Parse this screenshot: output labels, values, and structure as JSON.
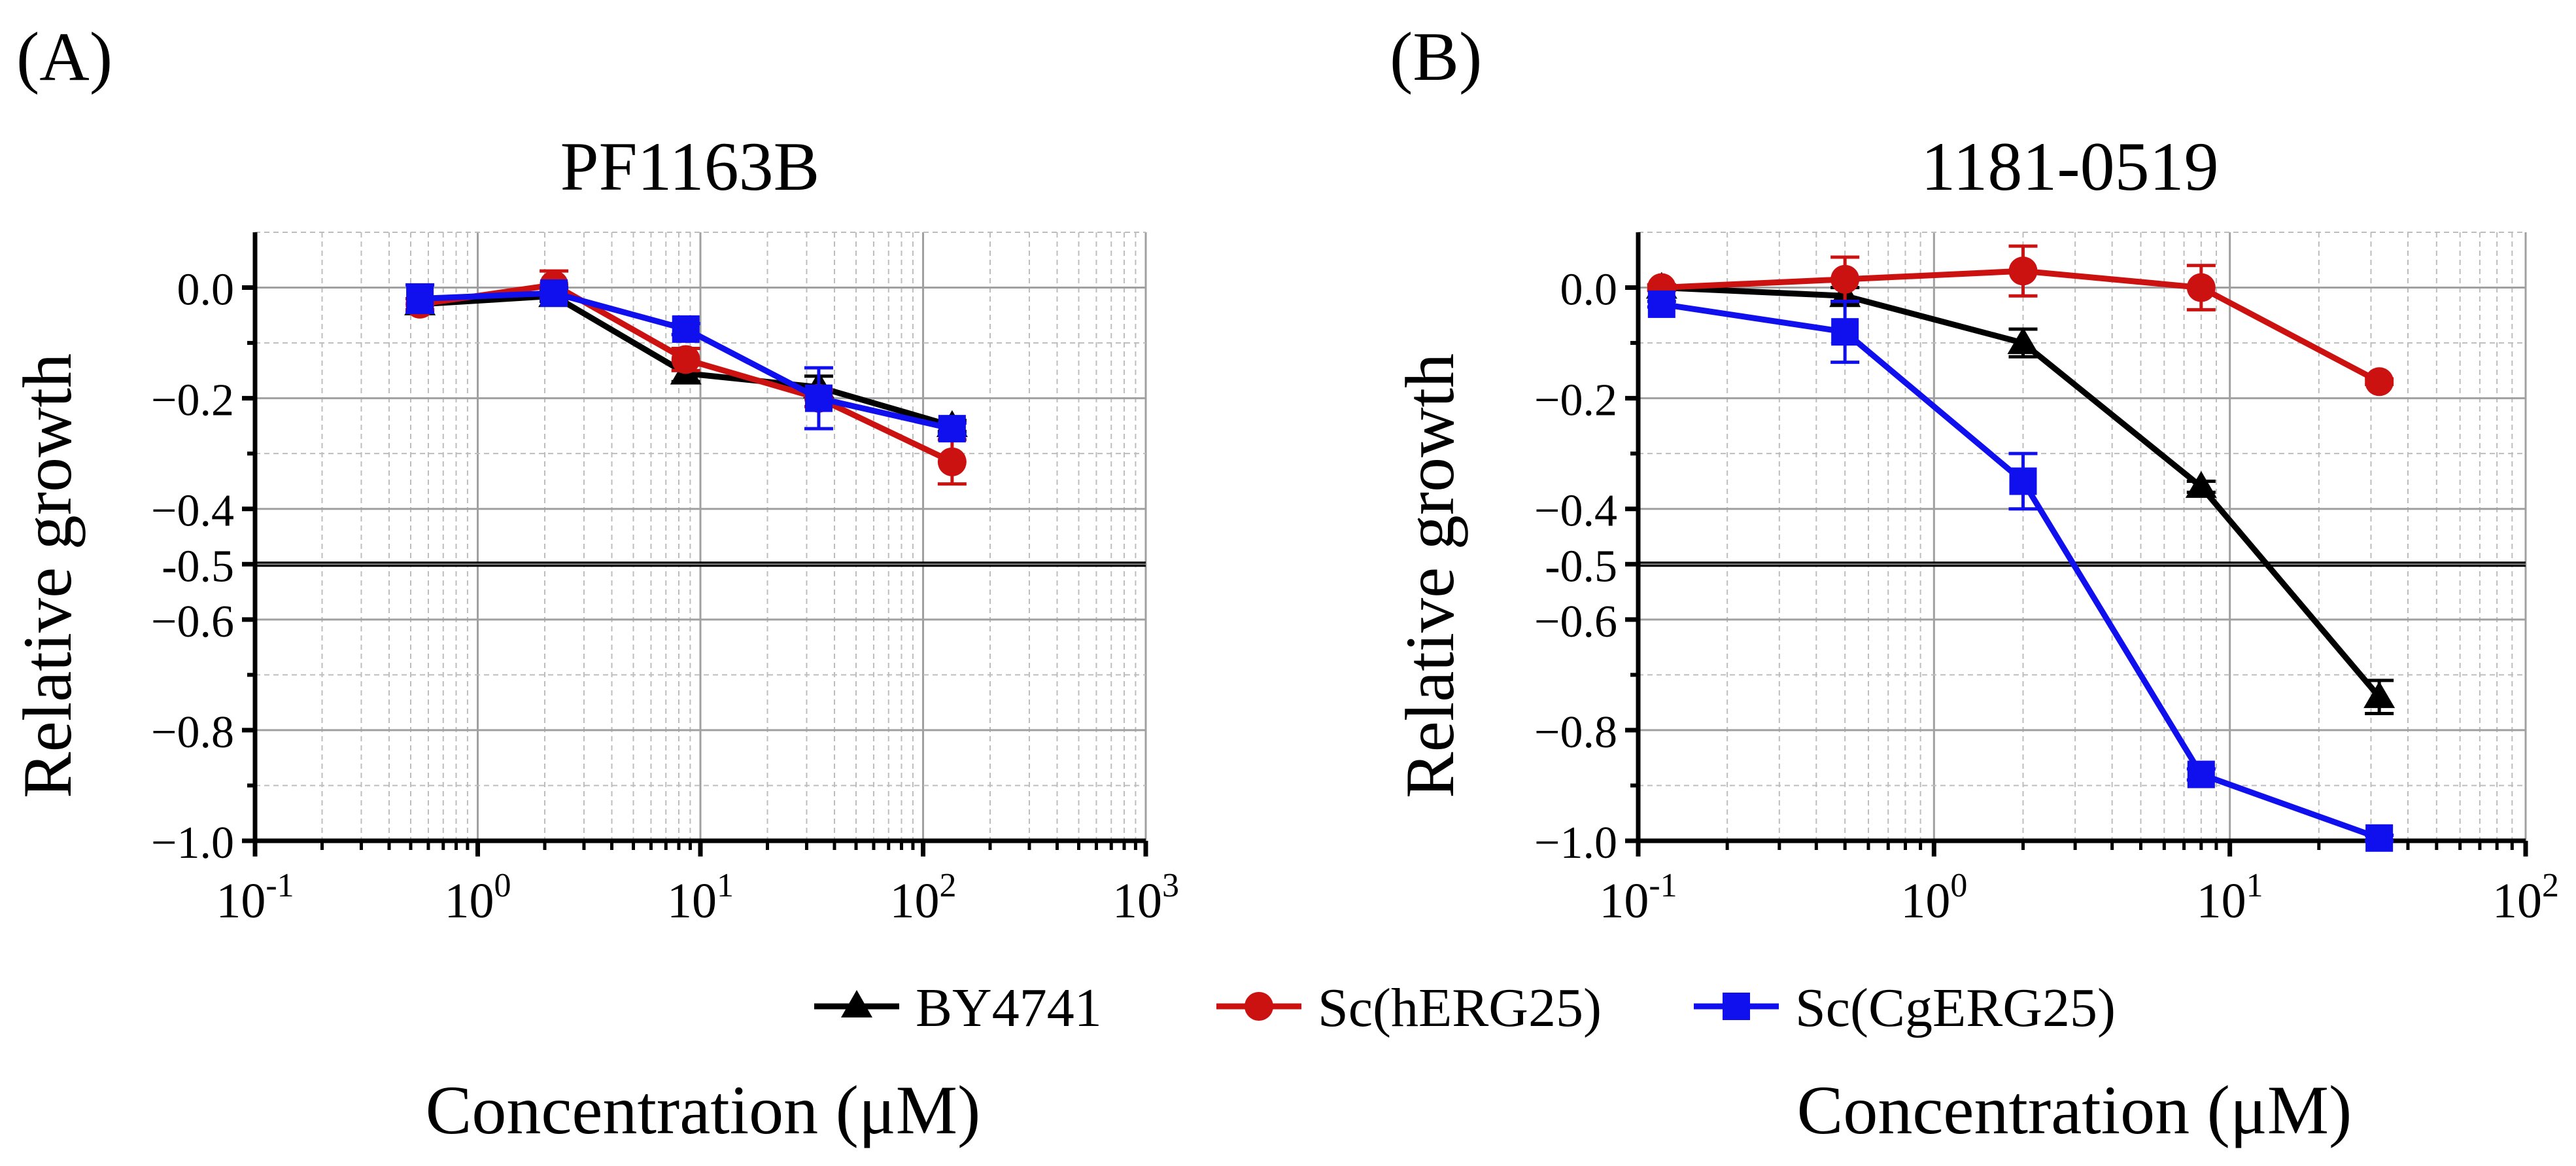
{
  "colors": {
    "BY4741": "#000000",
    "Sc(hERG25)": "#cc1111",
    "Sc(CgERG25)": "#1010ee",
    "grid_major": "#a0a0a0",
    "grid_minor": "#bdbdbd"
  },
  "legend": [
    {
      "label": "BY4741",
      "marker": "triangle",
      "color": "#000000"
    },
    {
      "label": "Sc(hERG25)",
      "marker": "circle",
      "color": "#cc1111"
    },
    {
      "label": "Sc(CgERG25)",
      "marker": "square",
      "color": "#1010ee"
    }
  ],
  "chart_data": [
    {
      "panel_label": "(A)",
      "type": "line",
      "title": "PF1163B",
      "xlabel": "Concentration (μM)",
      "ylabel": "Relative growth",
      "xscale": "log",
      "xlim": [
        0.1,
        1000
      ],
      "ylim": [
        -1.0,
        0.1
      ],
      "xticks": [
        {
          "base": "10",
          "exp": "-1"
        },
        {
          "base": "10",
          "exp": "0"
        },
        {
          "base": "10",
          "exp": "1"
        },
        {
          "base": "10",
          "exp": "2"
        },
        {
          "base": "10",
          "exp": "3"
        }
      ],
      "yticks": [
        "0.0",
        "−0.2",
        "−0.4",
        "-0.5",
        "−0.6",
        "−0.8",
        "−1.0"
      ],
      "reference_line": -0.5,
      "grid": true,
      "series": [
        {
          "name": "BY4741",
          "marker": "triangle",
          "x": [
            0.55,
            2.2,
            8.6,
            34,
            135
          ],
          "y": [
            -0.03,
            -0.015,
            -0.155,
            -0.18,
            -0.25
          ],
          "err": [
            0.01,
            0.01,
            0.015,
            0.02,
            0.01
          ]
        },
        {
          "name": "Sc(hERG25)",
          "marker": "circle",
          "x": [
            0.55,
            2.2,
            8.6,
            34,
            135
          ],
          "y": [
            -0.03,
            0.005,
            -0.13,
            -0.2,
            -0.315
          ],
          "err": [
            0.01,
            0.025,
            0.02,
            0.015,
            0.04
          ]
        },
        {
          "name": "Sc(CgERG25)",
          "marker": "square",
          "x": [
            0.55,
            2.2,
            8.6,
            34,
            135
          ],
          "y": [
            -0.02,
            -0.01,
            -0.075,
            -0.2,
            -0.255
          ],
          "err": [
            0.025,
            0.01,
            0.01,
            0.055,
            0.01
          ]
        }
      ]
    },
    {
      "panel_label": "(B)",
      "type": "line",
      "title": "1181-0519",
      "xlabel": "Concentration (μM)",
      "ylabel": "Relative growth",
      "xscale": "log",
      "xlim": [
        0.1,
        100
      ],
      "ylim": [
        -1.0,
        0.1
      ],
      "xticks": [
        {
          "base": "10",
          "exp": "-1"
        },
        {
          "base": "10",
          "exp": "0"
        },
        {
          "base": "10",
          "exp": "1"
        },
        {
          "base": "10",
          "exp": "2"
        }
      ],
      "yticks": [
        "0.0",
        "−0.2",
        "−0.4",
        "-0.5",
        "−0.6",
        "−0.8",
        "−1.0"
      ],
      "reference_line": -0.5,
      "grid": true,
      "series": [
        {
          "name": "BY4741",
          "marker": "triangle",
          "x": [
            0.12,
            0.5,
            2,
            8,
            32
          ],
          "y": [
            0.0,
            -0.015,
            -0.1,
            -0.36,
            -0.74
          ],
          "err": [
            0.005,
            0.015,
            0.025,
            0.01,
            0.03
          ]
        },
        {
          "name": "Sc(hERG25)",
          "marker": "circle",
          "x": [
            0.12,
            0.5,
            2,
            8,
            32
          ],
          "y": [
            0.0,
            0.015,
            0.03,
            0.0,
            -0.17
          ],
          "err": [
            0.005,
            0.04,
            0.045,
            0.04,
            0.005
          ]
        },
        {
          "name": "Sc(CgERG25)",
          "marker": "square",
          "x": [
            0.12,
            0.5,
            2,
            8,
            32
          ],
          "y": [
            -0.03,
            -0.08,
            -0.35,
            -0.88,
            -0.995
          ],
          "err": [
            0.005,
            0.055,
            0.05,
            0.01,
            0.005
          ]
        }
      ]
    }
  ]
}
